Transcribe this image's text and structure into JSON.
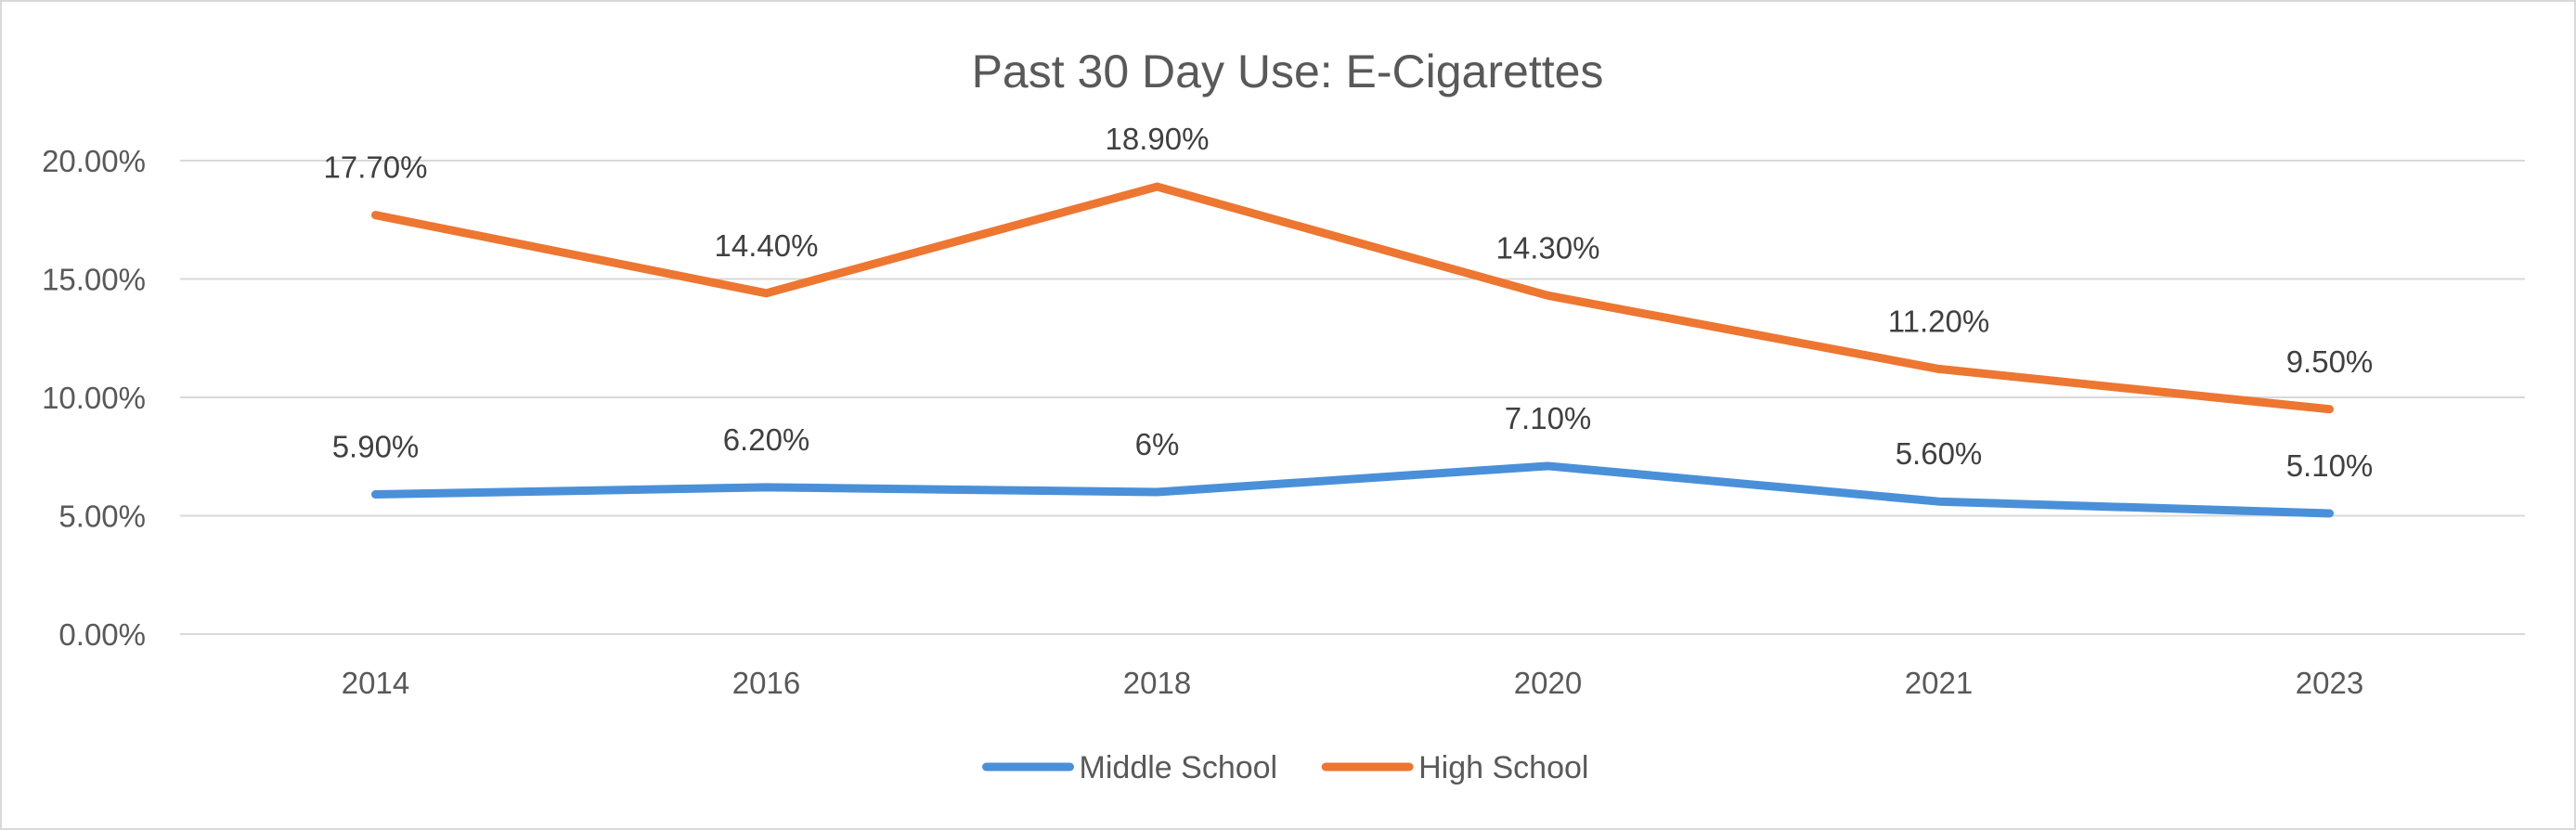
{
  "chart_data": {
    "type": "line",
    "title": "Past 30 Day Use: E-Cigarettes",
    "xlabel": "",
    "ylabel": "",
    "categories": [
      "2014",
      "2016",
      "2018",
      "2020",
      "2021",
      "2023"
    ],
    "y_ticks": [
      "0.00%",
      "5.00%",
      "10.00%",
      "15.00%",
      "20.00%"
    ],
    "ylim": [
      0,
      20
    ],
    "grid": true,
    "legend_position": "bottom",
    "series": [
      {
        "name": "Middle School",
        "color": "#4a90d9",
        "values": [
          5.9,
          6.2,
          6.0,
          7.1,
          5.6,
          5.1
        ],
        "labels": [
          "5.90%",
          "6.20%",
          "6%",
          "7.10%",
          "5.60%",
          "5.10%"
        ]
      },
      {
        "name": "High School",
        "color": "#ed7631",
        "values": [
          17.7,
          14.4,
          18.9,
          14.3,
          11.2,
          9.5
        ],
        "labels": [
          "17.70%",
          "14.40%",
          "18.90%",
          "14.30%",
          "11.20%",
          "9.50%"
        ]
      }
    ]
  }
}
